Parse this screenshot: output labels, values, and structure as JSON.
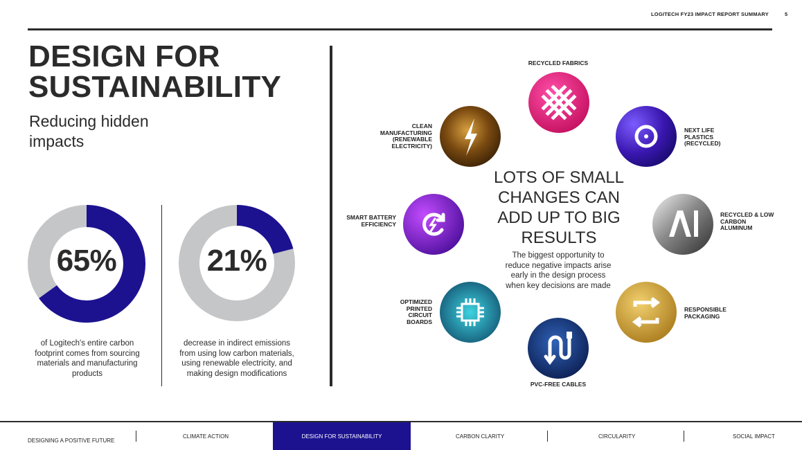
{
  "header": {
    "report_title": "LOGITECH FY23 IMPACT REPORT SUMMARY",
    "page_number": "5"
  },
  "main": {
    "title": "DESIGN FOR SUSTAINABILITY",
    "subtitle": "Reducing hidden impacts"
  },
  "stats": [
    {
      "value": "65%",
      "fraction": 0.65,
      "description": "of Logitech's entire carbon footprint comes from sourcing materials and manufacturing products"
    },
    {
      "value": "21%",
      "fraction": 0.21,
      "description": "decrease in indirect emissions from using low carbon materials, using renewable electricity, and making design modifications"
    }
  ],
  "center": {
    "heading": "LOTS OF SMALL CHANGES CAN ADD UP TO BIG RESULTS",
    "text": "The biggest opportunity to reduce negative impacts arise early in the design process when key decisions are made"
  },
  "circles": [
    {
      "label": "RECYCLED FABRICS",
      "icon": "woven-fabric-icon",
      "color": "#e3197a"
    },
    {
      "label": "NEXT LIFE PLASTICS (RECYCLED)",
      "icon": "recycle-loop-icon",
      "color": "#4a1fb8"
    },
    {
      "label": "RECYCLED & LOW CARBON ALUMINUM",
      "icon": "aluminum-al-icon",
      "color": "#6a6a6a"
    },
    {
      "label": "RESPONSIBLE PACKAGING",
      "icon": "packaging-cycle-icon",
      "color": "#c99a2e"
    },
    {
      "label": "PVC-FREE CABLES",
      "icon": "cable-icon",
      "color": "#12306e"
    },
    {
      "label": "OPTIMIZED PRINTED CIRCUIT BOARDS",
      "icon": "circuit-chip-icon",
      "color": "#137a8a"
    },
    {
      "label": "SMART BATTERY EFFICIENCY",
      "icon": "battery-charge-icon",
      "color": "#7b1fc9"
    },
    {
      "label": "CLEAN MANUFACTURING (RENEWABLE ELECTRICITY)",
      "icon": "lightning-bolt-icon",
      "color": "#8a5a12"
    }
  ],
  "colors": {
    "accent_navy": "#1c1290",
    "ring_gray": "#c5c6c8",
    "text_dark": "#2b2b2b"
  },
  "footer_nav": [
    {
      "label": "DESIGNING A POSITIVE FUTURE",
      "active": false
    },
    {
      "label": "CLIMATE ACTION",
      "active": false
    },
    {
      "label": "DESIGN FOR SUSTAINABILITY",
      "active": true
    },
    {
      "label": "CARBON CLARITY",
      "active": false
    },
    {
      "label": "CIRCULARITY",
      "active": false
    },
    {
      "label": "SOCIAL IMPACT",
      "active": false
    }
  ]
}
